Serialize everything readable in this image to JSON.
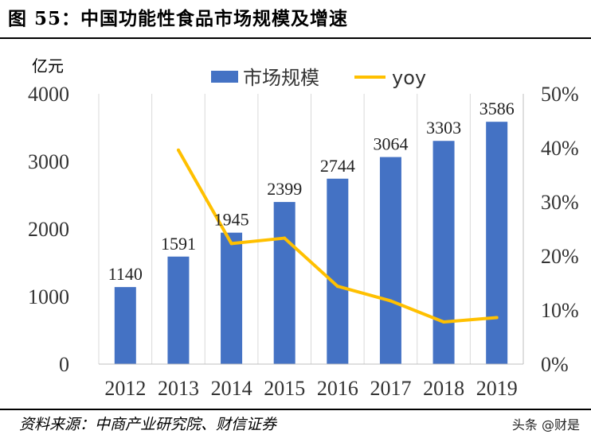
{
  "title": "图 55：中国功能性食品市场规模及增速",
  "source": "资料来源：中商产业研究院、财信证券",
  "watermark": "头条 @财是",
  "chart_data": {
    "type": "bar",
    "categories": [
      "2012",
      "2013",
      "2014",
      "2015",
      "2016",
      "2017",
      "2018",
      "2019"
    ],
    "series": [
      {
        "name": "市场规模",
        "type": "bar",
        "axis": "left",
        "color": "#4472C4",
        "values": [
          1140,
          1591,
          1945,
          2399,
          2744,
          3064,
          3303,
          3586
        ]
      },
      {
        "name": "yoy",
        "type": "line",
        "axis": "right",
        "color": "#FFC000",
        "values": [
          null,
          39.6,
          22.3,
          23.3,
          14.4,
          11.7,
          7.8,
          8.6
        ]
      }
    ],
    "ylabel": "亿元",
    "ylim": [
      0,
      4000
    ],
    "yticks": [
      "0",
      "1000",
      "2000",
      "3000",
      "4000"
    ],
    "y2lim": [
      0,
      50
    ],
    "y2ticks": [
      "0%",
      "10%",
      "20%",
      "30%",
      "40%",
      "50%"
    ],
    "data_labels": [
      "1140",
      "1591",
      "1945",
      "2399",
      "2744",
      "3064",
      "3303",
      "3586"
    ],
    "grid": "vertical",
    "legend": "top"
  }
}
